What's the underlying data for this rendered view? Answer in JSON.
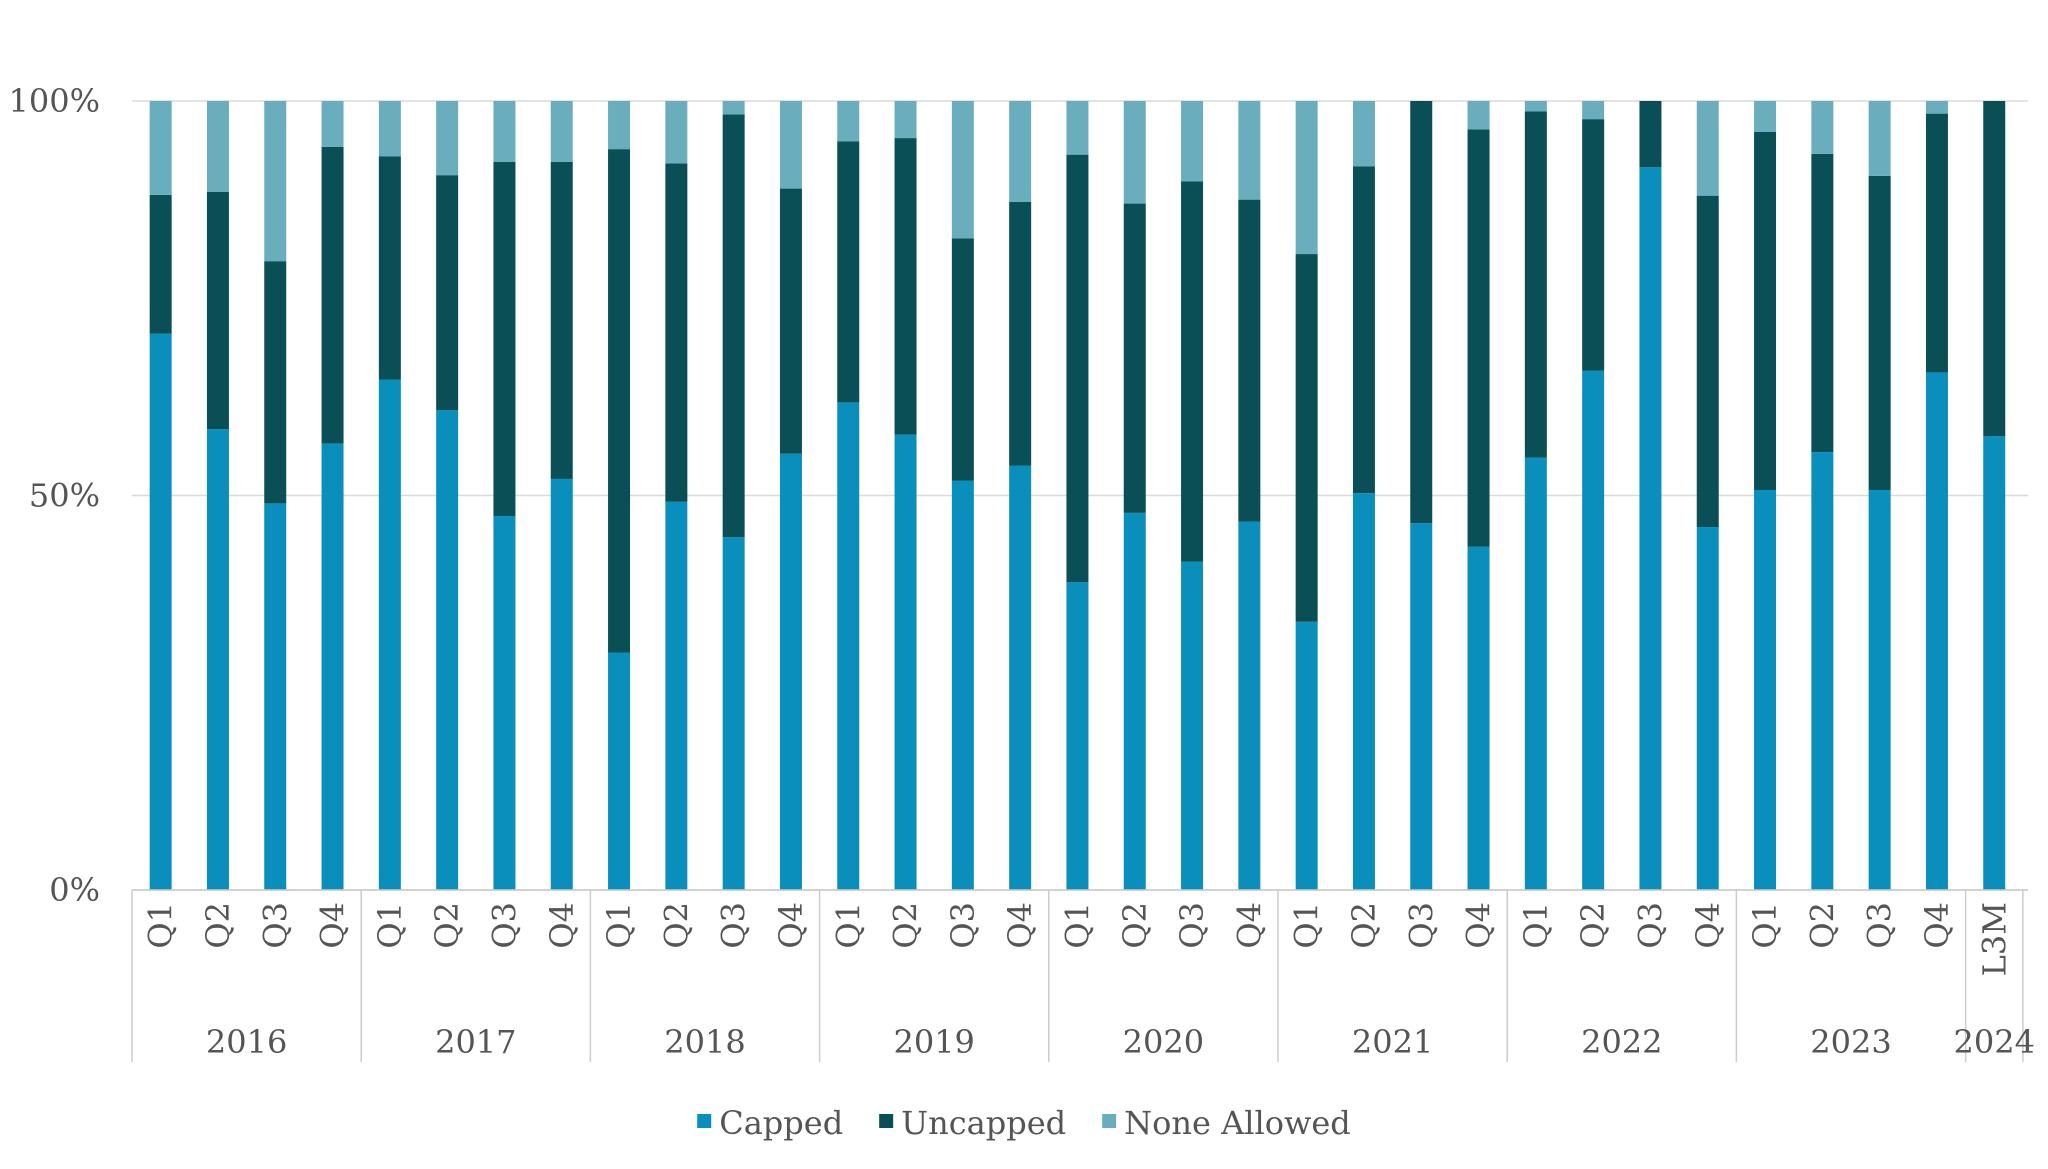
{
  "chart_data": {
    "type": "bar",
    "stacked": true,
    "title": "",
    "xlabel": "",
    "ylabel": "",
    "ylim": [
      0,
      100
    ],
    "yticks": [
      {
        "value": 0,
        "label": "0%"
      },
      {
        "value": 50,
        "label": "50%"
      },
      {
        "value": 100,
        "label": "100%"
      }
    ],
    "categories": [
      "Q1",
      "Q2",
      "Q3",
      "Q4",
      "Q1",
      "Q2",
      "Q3",
      "Q4",
      "Q1",
      "Q2",
      "Q3",
      "Q4",
      "Q1",
      "Q2",
      "Q3",
      "Q4",
      "Q1",
      "Q2",
      "Q3",
      "Q4",
      "Q1",
      "Q2",
      "Q3",
      "Q4",
      "Q1",
      "Q2",
      "Q3",
      "Q4",
      "Q1",
      "Q2",
      "Q3",
      "Q4",
      "L3M"
    ],
    "groups": [
      {
        "label": "2016",
        "count": 4
      },
      {
        "label": "2017",
        "count": 4
      },
      {
        "label": "2018",
        "count": 4
      },
      {
        "label": "2019",
        "count": 4
      },
      {
        "label": "2020",
        "count": 4
      },
      {
        "label": "2021",
        "count": 4
      },
      {
        "label": "2022",
        "count": 4
      },
      {
        "label": "2023",
        "count": 4
      },
      {
        "label": "2024",
        "count": 1
      }
    ],
    "series": [
      {
        "name": "Capped",
        "color": "#0a8fbd",
        "values": [
          70.5,
          58.4,
          49.0,
          56.6,
          64.7,
          60.8,
          47.4,
          52.1,
          30.1,
          49.2,
          44.7,
          55.3,
          61.8,
          57.7,
          51.9,
          53.8,
          39.0,
          47.8,
          41.6,
          46.7,
          34.0,
          50.3,
          46.5,
          43.5,
          54.8,
          65.8,
          91.6,
          46.0,
          50.7,
          55.5,
          50.7,
          65.6,
          57.5
        ]
      },
      {
        "name": "Uncapped",
        "color": "#0b4f56",
        "values": [
          17.6,
          30.1,
          30.7,
          37.6,
          28.3,
          29.8,
          44.9,
          40.2,
          63.8,
          42.9,
          53.6,
          33.6,
          33.1,
          37.6,
          30.7,
          33.4,
          54.2,
          39.2,
          48.2,
          40.8,
          46.6,
          41.4,
          53.5,
          52.9,
          43.9,
          31.9,
          8.4,
          42.0,
          45.4,
          37.8,
          39.8,
          32.8,
          42.5
        ]
      },
      {
        "name": "None Allowed",
        "color": "#6aaebd",
        "values": [
          11.9,
          11.5,
          20.3,
          5.8,
          7.0,
          9.4,
          7.7,
          7.7,
          6.1,
          7.9,
          1.7,
          11.1,
          5.1,
          4.7,
          17.4,
          12.8,
          6.8,
          13.0,
          10.2,
          12.5,
          19.4,
          8.3,
          0.0,
          3.6,
          1.3,
          2.3,
          0.0,
          12.0,
          3.9,
          6.7,
          9.5,
          1.6,
          0.0
        ]
      }
    ],
    "legend_position": "bottom-center",
    "gridlines": true
  }
}
